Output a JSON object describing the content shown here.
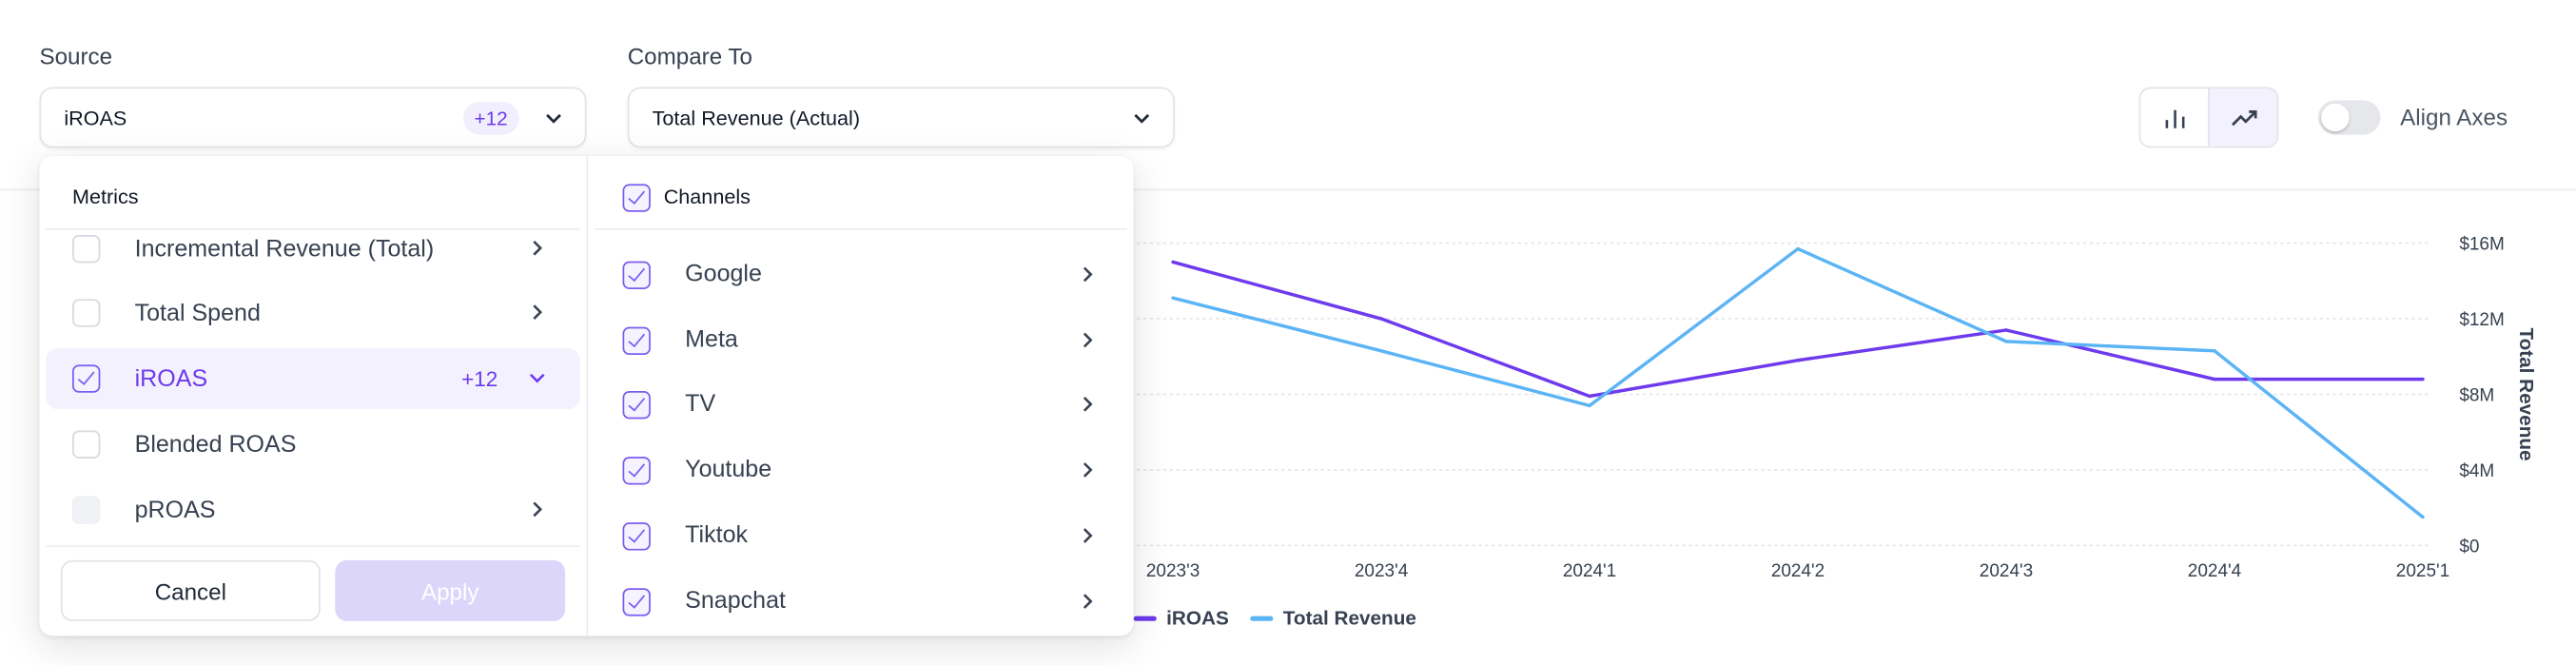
{
  "source": {
    "label": "Source",
    "value": "iROAS",
    "badge": "+12"
  },
  "compare": {
    "label": "Compare To",
    "value": "Total Revenue (Actual)"
  },
  "toolbar": {
    "icons": [
      "bar-chart-icon",
      "line-chart-icon"
    ],
    "active": "line-chart-icon",
    "align_axes_label": "Align Axes",
    "align_axes_on": false
  },
  "dropdown": {
    "metrics_header": "Metrics",
    "metrics": [
      {
        "label": "Incremental Revenue (Total)",
        "checked": false,
        "arrow": "chevron-right"
      },
      {
        "label": "Total Spend",
        "checked": false,
        "arrow": "chevron-right"
      },
      {
        "label": "iROAS",
        "checked": true,
        "badge": "+12",
        "arrow": "chevron-down"
      },
      {
        "label": "Blended ROAS",
        "checked": false
      },
      {
        "label": "pROAS",
        "checked": false,
        "disabled": true,
        "arrow": "chevron-right"
      }
    ],
    "channels_header": "Channels",
    "channels": [
      {
        "label": "Google",
        "checked": true
      },
      {
        "label": "Meta",
        "checked": true
      },
      {
        "label": "TV",
        "checked": true
      },
      {
        "label": "Youtube",
        "checked": true
      },
      {
        "label": "Tiktok",
        "checked": true
      },
      {
        "label": "Snapchat",
        "checked": true
      }
    ],
    "cancel_label": "Cancel",
    "apply_label": "Apply"
  },
  "chart_data": {
    "type": "line",
    "categories": [
      "2023'3",
      "2023'4",
      "2024'1",
      "2024'2",
      "2024'3",
      "2024'4",
      "2025'1"
    ],
    "y_right": {
      "label": "Total Revenue",
      "ticks": [
        "$0",
        "$4M",
        "$8M",
        "$12M",
        "$16M"
      ],
      "range": [
        0,
        16
      ]
    },
    "series": [
      {
        "name": "iROAS",
        "color": "#6d3aed",
        "values": [
          15.0,
          12.0,
          7.9,
          9.8,
          11.4,
          8.8,
          8.8
        ]
      },
      {
        "name": "Total Revenue",
        "color": "#5bb4f5",
        "values": [
          13.1,
          10.3,
          7.4,
          15.7,
          10.8,
          10.3,
          1.5
        ]
      }
    ],
    "grid": true,
    "legend": "bottom-left"
  }
}
